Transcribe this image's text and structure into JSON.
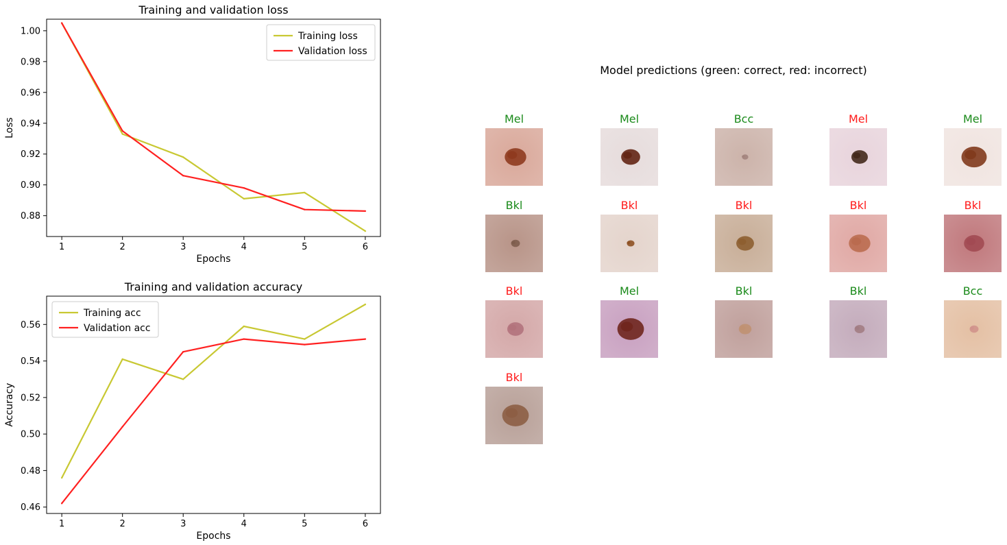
{
  "colors": {
    "training": "#c8c832",
    "validation": "#ff2020",
    "correct": "#1a8a1a",
    "incorrect": "#ff1a1a",
    "axis": "#000000"
  },
  "chart_data": [
    {
      "type": "line",
      "title": "Training and validation loss",
      "xlabel": "Epochs",
      "ylabel": "Loss",
      "x": [
        1,
        2,
        3,
        4,
        5,
        6
      ],
      "xlim": [
        0.75,
        6.25
      ],
      "ylim": [
        0.8665,
        1.0075
      ],
      "xticks": [
        "1",
        "2",
        "3",
        "4",
        "5",
        "6"
      ],
      "yticks": [
        "0.88",
        "0.90",
        "0.92",
        "0.94",
        "0.96",
        "0.98",
        "1.00"
      ],
      "ytick_values": [
        0.88,
        0.9,
        0.92,
        0.94,
        0.96,
        0.98,
        1.0
      ],
      "legend": "top-right",
      "grid": false,
      "series": [
        {
          "name": "Training loss",
          "color": "#c8c832",
          "values": [
            1.005,
            0.933,
            0.918,
            0.891,
            0.895,
            0.87
          ]
        },
        {
          "name": "Validation loss",
          "color": "#ff2020",
          "values": [
            1.005,
            0.935,
            0.906,
            0.898,
            0.884,
            0.883
          ]
        }
      ]
    },
    {
      "type": "line",
      "title": "Training and validation accuracy",
      "xlabel": "Epochs",
      "ylabel": "Accuracy",
      "x": [
        1,
        2,
        3,
        4,
        5,
        6
      ],
      "xlim": [
        0.75,
        6.25
      ],
      "ylim": [
        0.4565,
        0.5755
      ],
      "xticks": [
        "1",
        "2",
        "3",
        "4",
        "5",
        "6"
      ],
      "yticks": [
        "0.46",
        "0.48",
        "0.50",
        "0.52",
        "0.54",
        "0.56"
      ],
      "ytick_values": [
        0.46,
        0.48,
        0.5,
        0.52,
        0.54,
        0.56
      ],
      "legend": "top-left",
      "grid": false,
      "series": [
        {
          "name": "Training acc",
          "color": "#c8c832",
          "values": [
            0.476,
            0.541,
            0.53,
            0.559,
            0.552,
            0.571
          ]
        },
        {
          "name": "Validation acc",
          "color": "#ff2020",
          "values": [
            0.462,
            0.504,
            0.545,
            0.552,
            0.549,
            0.552
          ]
        }
      ]
    }
  ],
  "predictions": {
    "title": "Model predictions (green: correct, red: incorrect)",
    "items": [
      {
        "label": "Mel",
        "correct": true,
        "bg": "#d9a89a",
        "spot": "#8a3418",
        "spot_size": 0.34
      },
      {
        "label": "Mel",
        "correct": true,
        "bg": "#e6dcdc",
        "spot": "#5a1a08",
        "spot_size": 0.3
      },
      {
        "label": "Bcc",
        "correct": true,
        "bg": "#ccb3aa",
        "spot": "#a0807a",
        "spot_size": 0.1
      },
      {
        "label": "Mel",
        "correct": false,
        "bg": "#e8d4dc",
        "spot": "#3a2010",
        "spot_size": 0.26
      },
      {
        "label": "Mel",
        "correct": true,
        "bg": "#f0e4e0",
        "spot": "#7a3010",
        "spot_size": 0.4
      },
      {
        "label": "Bkl",
        "correct": true,
        "bg": "#b89488",
        "spot": "#7a5a4a",
        "spot_size": 0.14
      },
      {
        "label": "Bkl",
        "correct": false,
        "bg": "#e4d4cc",
        "spot": "#8a4a1a",
        "spot_size": 0.12
      },
      {
        "label": "Bkl",
        "correct": false,
        "bg": "#c8ae98",
        "spot": "#8a5a2a",
        "spot_size": 0.28
      },
      {
        "label": "Bkl",
        "correct": false,
        "bg": "#e0a8a4",
        "spot": "#b8684a",
        "spot_size": 0.34
      },
      {
        "label": "Bkl",
        "correct": false,
        "bg": "#c0787c",
        "spot": "#a04850",
        "spot_size": 0.32
      },
      {
        "label": "Bkl",
        "correct": false,
        "bg": "#d4a8a8",
        "spot": "#b0707a",
        "spot_size": 0.26
      },
      {
        "label": "Mel",
        "correct": true,
        "bg": "#c8a0c0",
        "spot": "#6a1e14",
        "spot_size": 0.42
      },
      {
        "label": "Bkl",
        "correct": true,
        "bg": "#c0a09c",
        "spot": "#c09070",
        "spot_size": 0.2
      },
      {
        "label": "Bkl",
        "correct": true,
        "bg": "#c4acbc",
        "spot": "#a07a80",
        "spot_size": 0.16
      },
      {
        "label": "Bcc",
        "correct": true,
        "bg": "#e4c0a4",
        "spot": "#d0908a",
        "spot_size": 0.14
      },
      {
        "label": "Bkl",
        "correct": false,
        "bg": "#b8a098",
        "spot": "#8a5a40",
        "spot_size": 0.42
      }
    ]
  }
}
